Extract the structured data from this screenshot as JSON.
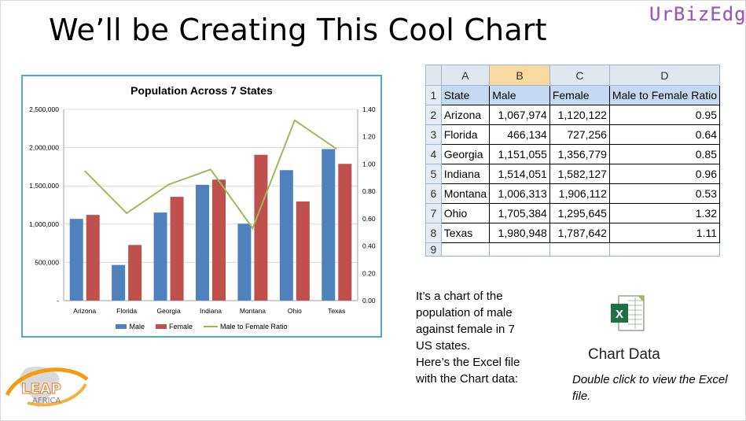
{
  "slide": {
    "title": "We’ll be Creating This Cool Chart",
    "brand": "UrBizEdge",
    "description_lines": [
      "It’s a chart of the",
      "population of male",
      "against female in 7",
      "US states.",
      "Here’s the Excel file",
      "with the Chart data:"
    ],
    "excel_icon_label": "Chart Data",
    "double_click_hint": "Double click to view the Excel file.",
    "logo_text_top": "LEAP",
    "logo_text_bottom": "AFRICA"
  },
  "colors": {
    "male": "#4f81bd",
    "female": "#c0504d",
    "ratio": "#9bbb59",
    "chart_border": "#4aacc6",
    "brand": "#9b59b6"
  },
  "spreadsheet": {
    "column_letters": [
      "A",
      "B",
      "C",
      "D"
    ],
    "row_numbers": [
      "1",
      "2",
      "3",
      "4",
      "5",
      "6",
      "7",
      "8",
      "9"
    ],
    "headers": [
      "State",
      "Male",
      "Female",
      "Male to Female Ratio"
    ],
    "rows": [
      [
        "Arizona",
        "1,067,974",
        "1,120,122",
        "0.95"
      ],
      [
        "Florida",
        "466,134",
        "727,256",
        "0.64"
      ],
      [
        "Georgia",
        "1,151,055",
        "1,356,779",
        "0.85"
      ],
      [
        "Indiana",
        "1,514,051",
        "1,582,127",
        "0.96"
      ],
      [
        "Montana",
        "1,006,313",
        "1,906,112",
        "0.53"
      ],
      [
        "Ohio",
        "1,705,384",
        "1,295,645",
        "1.32"
      ],
      [
        "Texas",
        "1,980,948",
        "1,787,642",
        "1.11"
      ]
    ]
  },
  "chart_data": {
    "type": "bar",
    "title": "Population Across 7 States",
    "categories": [
      "Arizona",
      "Florida",
      "Georgia",
      "Indiana",
      "Montana",
      "Ohio",
      "Texas"
    ],
    "series": [
      {
        "name": "Male",
        "type": "bar",
        "axis": "left",
        "values": [
          1067974,
          466134,
          1151055,
          1514051,
          1006313,
          1705384,
          1980948
        ]
      },
      {
        "name": "Female",
        "type": "bar",
        "axis": "left",
        "values": [
          1120122,
          727256,
          1356779,
          1582127,
          1906112,
          1295645,
          1787642
        ]
      },
      {
        "name": "Male to Female Ratio",
        "type": "line",
        "axis": "right",
        "values": [
          0.95,
          0.64,
          0.85,
          0.96,
          0.53,
          1.32,
          1.11
        ]
      }
    ],
    "ylim": [
      0,
      2500000
    ],
    "y_ticks": [
      "-",
      "500,000",
      "1,000,000",
      "1,500,000",
      "2,000,000",
      "2,500,000"
    ],
    "y2lim": [
      0,
      1.4
    ],
    "y2_ticks": [
      "0.00",
      "0.20",
      "0.40",
      "0.60",
      "0.80",
      "1.00",
      "1.20",
      "1.40"
    ],
    "grid": true,
    "legend_position": "bottom"
  }
}
